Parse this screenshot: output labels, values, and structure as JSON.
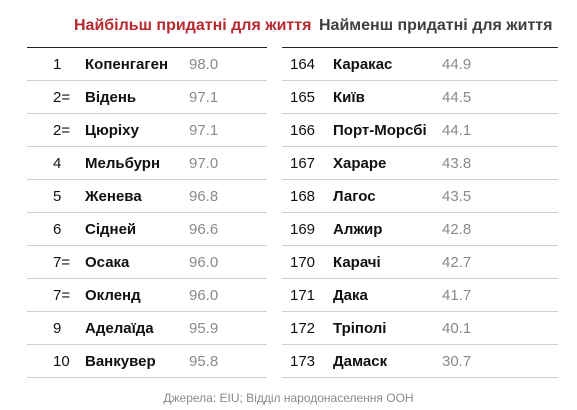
{
  "headers": {
    "most_livable": "Найбільш придатні для життя",
    "least_livable": "Найменш придатні для життя"
  },
  "most_livable": [
    {
      "rank": "1",
      "city": "Копенгаген",
      "score": "98.0"
    },
    {
      "rank": "2=",
      "city": "Відень",
      "score": "97.1"
    },
    {
      "rank": "2=",
      "city": "Цюріху",
      "score": "97.1"
    },
    {
      "rank": "4",
      "city": "Мельбурн",
      "score": "97.0"
    },
    {
      "rank": "5",
      "city": "Женева",
      "score": "96.8"
    },
    {
      "rank": "6",
      "city": "Сідней",
      "score": "96.6"
    },
    {
      "rank": "7=",
      "city": "Осака",
      "score": "96.0"
    },
    {
      "rank": "7=",
      "city": "Окленд",
      "score": "96.0"
    },
    {
      "rank": "9",
      "city": "Аделаїда",
      "score": "95.9"
    },
    {
      "rank": "10",
      "city": "Ванкувер",
      "score": "95.8"
    }
  ],
  "least_livable": [
    {
      "rank": "164",
      "city": "Каракас",
      "score": "44.9"
    },
    {
      "rank": "165",
      "city": "Київ",
      "score": "44.5"
    },
    {
      "rank": "166",
      "city": "Порт-Морсбі",
      "score": "44.1"
    },
    {
      "rank": "167",
      "city": "Хараре",
      "score": "43.8"
    },
    {
      "rank": "168",
      "city": "Лагос",
      "score": "43.5"
    },
    {
      "rank": "169",
      "city": "Алжир",
      "score": "42.8"
    },
    {
      "rank": "170",
      "city": "Карачі",
      "score": "42.7"
    },
    {
      "rank": "171",
      "city": "Дака",
      "score": "41.7"
    },
    {
      "rank": "172",
      "city": "Тріполі",
      "score": "40.1"
    },
    {
      "rank": "173",
      "city": "Дамаск",
      "score": "30.7"
    }
  ],
  "source": "Джерела: EIU; Відділ народонаселення ООН",
  "colors": {
    "left_header": "#b8282f",
    "right_header": "#404040",
    "score_text": "#8a8a8a"
  }
}
